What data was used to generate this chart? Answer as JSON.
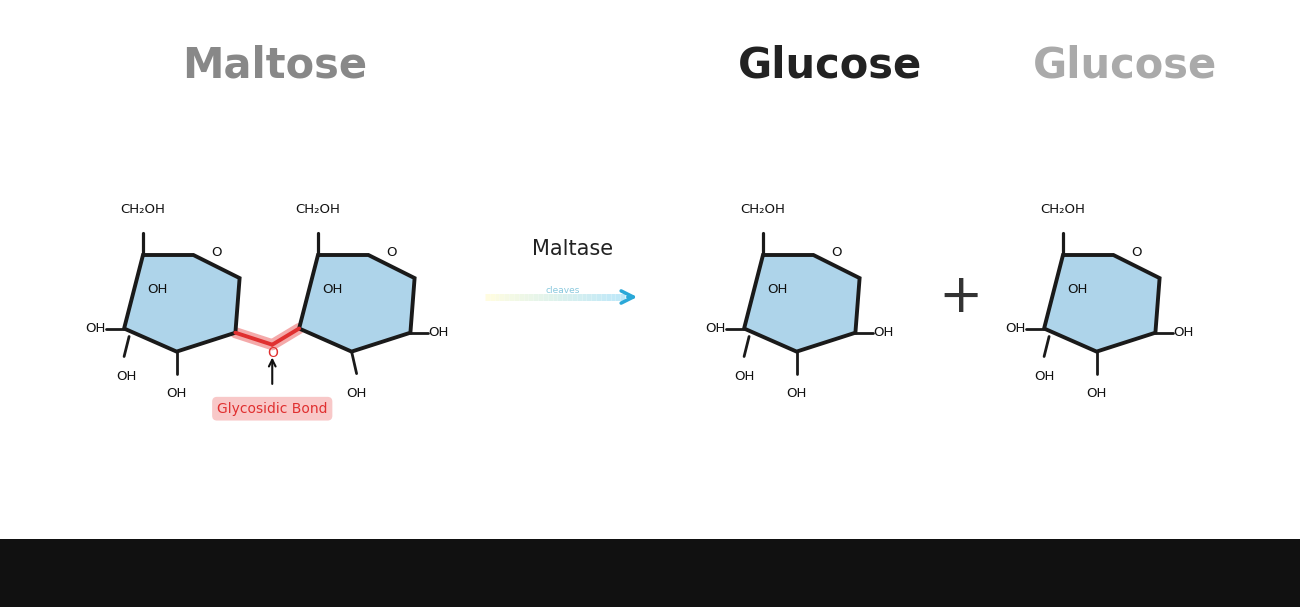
{
  "bg_color": "#ffffff",
  "title_maltose": "Maltose",
  "title_glucose1": "Glucose",
  "title_glucose2": "Glucose",
  "maltase_label": "Maltase",
  "glycosidic_label": "Glycosidic Bond",
  "ring_fill": "#aed4ea",
  "ring_edge": "#1a1a1a",
  "glycosidic_bond_color": "#e03030",
  "glycosidic_bg": "#f8c8c8",
  "arrow_color_start": "#b8e4f4",
  "arrow_color_end": "#2aa8d8",
  "plus_color": "#333333",
  "title_color_maltose": "#888888",
  "title_color_glucose1": "#222222",
  "title_color_glucose2": "#aaaaaa",
  "label_color": "#111111",
  "lw": 2.8,
  "bottom_bar_color": "#111111"
}
